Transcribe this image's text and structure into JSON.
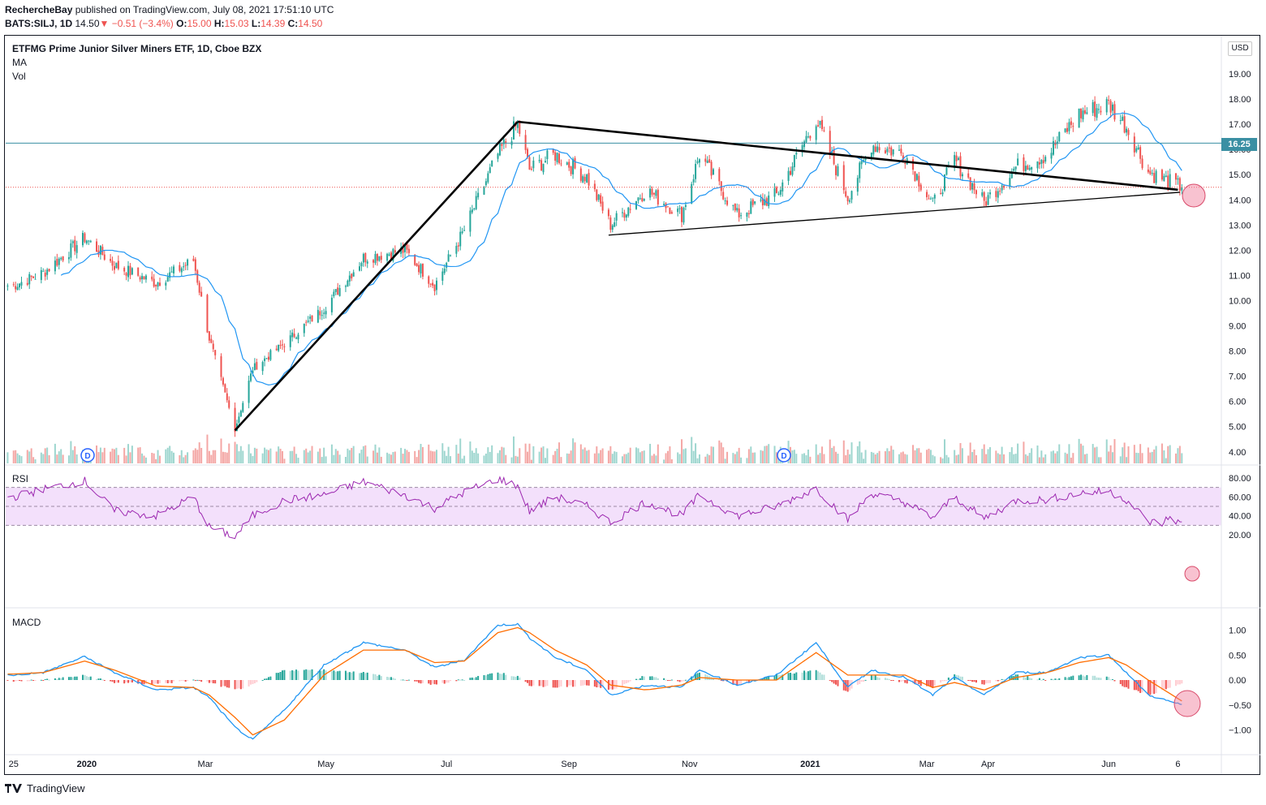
{
  "header": {
    "author": "RechercheBay",
    "published_text": "published on TradingView.com, July 08, 2021 17:51:10 UTC",
    "symbol": "BATS:SILJ, 1D",
    "last": "14.50",
    "arrow": "▼",
    "change": "−0.51 (−3.4%)",
    "o_label": "O:",
    "o_val": "15.00",
    "h_label": "H:",
    "h_val": "15.03",
    "l_label": "L:",
    "l_val": "14.39",
    "c_label": "C:",
    "c_val": "14.50"
  },
  "panes": {
    "main_title": "ETFMG Prime Junior Silver Miners ETF, 1D, Cboe BZX",
    "ma_label": "MA",
    "vol_label": "Vol",
    "rsi_label": "RSI",
    "macd_label": "MACD"
  },
  "currency": "USD",
  "price_tag": "16.25",
  "dividend_marker": "D",
  "footer": {
    "brand": "TradingView"
  },
  "colors": {
    "up": "#26a69a",
    "down": "#ef5350",
    "ma": "#2196f3",
    "rsi": "#9c27b0",
    "rsi_band": "#f3e0fb",
    "macd": "#2196f3",
    "signal": "#ff6d00",
    "hline": "#3a8fa3"
  },
  "chart_data": [
    {
      "type": "candlestick",
      "title": "ETFMG Prime Junior Silver Miners ETF, 1D, Cboe BZX",
      "x_ticks": [
        "25",
        "2020",
        "Mar",
        "May",
        "Jul",
        "Sep",
        "Nov",
        "2021",
        "Mar",
        "Apr",
        "Jun",
        "6"
      ],
      "y_ticks": [
        "19.00",
        "18.00",
        "17.00",
        "16.00",
        "15.00",
        "14.00",
        "13.00",
        "12.00",
        "11.00",
        "10.00",
        "9.00",
        "8.00",
        "7.00",
        "6.00",
        "5.00",
        "4.00"
      ],
      "ylim": [
        3.5,
        19.9
      ],
      "close_path": [
        {
          "date": "2019-11-25",
          "close": 10.6
        },
        {
          "date": "2019-12-10",
          "close": 11.1
        },
        {
          "date": "2019-12-31",
          "close": 12.5
        },
        {
          "date": "2020-01-15",
          "close": 11.4
        },
        {
          "date": "2020-02-05",
          "close": 10.7
        },
        {
          "date": "2020-02-24",
          "close": 11.6
        },
        {
          "date": "2020-03-03",
          "close": 8.5
        },
        {
          "date": "2020-03-16",
          "close": 4.9
        },
        {
          "date": "2020-03-25",
          "close": 7.3
        },
        {
          "date": "2020-04-10",
          "close": 8.3
        },
        {
          "date": "2020-04-30",
          "close": 9.7
        },
        {
          "date": "2020-05-20",
          "close": 11.7
        },
        {
          "date": "2020-06-10",
          "close": 12.0
        },
        {
          "date": "2020-06-25",
          "close": 10.6
        },
        {
          "date": "2020-07-10",
          "close": 12.8
        },
        {
          "date": "2020-07-27",
          "close": 15.8
        },
        {
          "date": "2020-08-06",
          "close": 17.0
        },
        {
          "date": "2020-08-12",
          "close": 15.2
        },
        {
          "date": "2020-08-25",
          "close": 15.8
        },
        {
          "date": "2020-09-10",
          "close": 14.9
        },
        {
          "date": "2020-09-22",
          "close": 13.0
        },
        {
          "date": "2020-10-10",
          "close": 14.4
        },
        {
          "date": "2020-10-28",
          "close": 13.4
        },
        {
          "date": "2020-11-06",
          "close": 15.8
        },
        {
          "date": "2020-11-25",
          "close": 13.4
        },
        {
          "date": "2020-12-15",
          "close": 14.2
        },
        {
          "date": "2021-01-04",
          "close": 17.2
        },
        {
          "date": "2021-01-20",
          "close": 14.1
        },
        {
          "date": "2021-02-01",
          "close": 16.2
        },
        {
          "date": "2021-02-18",
          "close": 15.8
        },
        {
          "date": "2021-03-04",
          "close": 13.8
        },
        {
          "date": "2021-03-15",
          "close": 15.6
        },
        {
          "date": "2021-03-30",
          "close": 13.9
        },
        {
          "date": "2021-04-15",
          "close": 15.3
        },
        {
          "date": "2021-05-01",
          "close": 15.8
        },
        {
          "date": "2021-05-17",
          "close": 17.4
        },
        {
          "date": "2021-06-01",
          "close": 17.8
        },
        {
          "date": "2021-06-10",
          "close": 16.9
        },
        {
          "date": "2021-06-21",
          "close": 15.1
        },
        {
          "date": "2021-07-08",
          "close": 14.5
        }
      ],
      "trendlines": [
        {
          "from": {
            "date": "2020-03-16",
            "price": 4.85
          },
          "to": {
            "date": "2020-08-06",
            "price": 17.1
          }
        },
        {
          "from": {
            "date": "2020-08-06",
            "price": 17.1
          },
          "to": {
            "date": "2021-07-06",
            "price": 14.4
          }
        },
        {
          "from": {
            "date": "2020-09-21",
            "price": 12.6
          },
          "to": {
            "date": "2021-07-07",
            "price": 14.3
          }
        }
      ],
      "horizontal_level": 16.25,
      "last_price_line": 14.5
    },
    {
      "type": "line",
      "title": "RSI",
      "y_ticks": [
        "80.00",
        "60.00",
        "40.00",
        "20.00"
      ],
      "ylim": [
        13,
        90
      ],
      "bands": {
        "upper": 70,
        "middle": 50,
        "lower": 30
      },
      "points": [
        {
          "date": "2019-11-25",
          "value": 60
        },
        {
          "date": "2019-12-10",
          "value": 68
        },
        {
          "date": "2019-12-31",
          "value": 77
        },
        {
          "date": "2020-01-15",
          "value": 45
        },
        {
          "date": "2020-02-05",
          "value": 40
        },
        {
          "date": "2020-02-24",
          "value": 60
        },
        {
          "date": "2020-03-03",
          "value": 28
        },
        {
          "date": "2020-03-16",
          "value": 18
        },
        {
          "date": "2020-03-25",
          "value": 40
        },
        {
          "date": "2020-04-10",
          "value": 56
        },
        {
          "date": "2020-04-30",
          "value": 62
        },
        {
          "date": "2020-05-20",
          "value": 76
        },
        {
          "date": "2020-06-10",
          "value": 62
        },
        {
          "date": "2020-06-25",
          "value": 48
        },
        {
          "date": "2020-07-10",
          "value": 65
        },
        {
          "date": "2020-07-27",
          "value": 79
        },
        {
          "date": "2020-08-06",
          "value": 72
        },
        {
          "date": "2020-08-12",
          "value": 45
        },
        {
          "date": "2020-08-25",
          "value": 60
        },
        {
          "date": "2020-09-10",
          "value": 50
        },
        {
          "date": "2020-09-22",
          "value": 33
        },
        {
          "date": "2020-10-10",
          "value": 55
        },
        {
          "date": "2020-10-28",
          "value": 40
        },
        {
          "date": "2020-11-06",
          "value": 62
        },
        {
          "date": "2020-11-25",
          "value": 40
        },
        {
          "date": "2020-12-15",
          "value": 50
        },
        {
          "date": "2021-01-04",
          "value": 69
        },
        {
          "date": "2021-01-20",
          "value": 36
        },
        {
          "date": "2021-02-01",
          "value": 64
        },
        {
          "date": "2021-02-18",
          "value": 54
        },
        {
          "date": "2021-03-04",
          "value": 38
        },
        {
          "date": "2021-03-15",
          "value": 60
        },
        {
          "date": "2021-03-30",
          "value": 37
        },
        {
          "date": "2021-04-15",
          "value": 56
        },
        {
          "date": "2021-05-01",
          "value": 57
        },
        {
          "date": "2021-05-17",
          "value": 64
        },
        {
          "date": "2021-06-01",
          "value": 66
        },
        {
          "date": "2021-06-10",
          "value": 57
        },
        {
          "date": "2021-06-21",
          "value": 34
        },
        {
          "date": "2021-06-28",
          "value": 32
        },
        {
          "date": "2021-07-02",
          "value": 39
        },
        {
          "date": "2021-07-08",
          "value": 31
        }
      ]
    },
    {
      "type": "line",
      "title": "MACD",
      "y_ticks": [
        "1.00",
        "0.50",
        "0.00",
        "−0.50",
        "−1.00"
      ],
      "ylim": [
        -1.35,
        1.35
      ],
      "series": [
        {
          "name": "MACD",
          "points": [
            {
              "date": "2019-11-25",
              "value": 0.1
            },
            {
              "date": "2019-12-10",
              "value": 0.15
            },
            {
              "date": "2019-12-31",
              "value": 0.47
            },
            {
              "date": "2020-01-15",
              "value": 0.15
            },
            {
              "date": "2020-02-05",
              "value": -0.2
            },
            {
              "date": "2020-02-24",
              "value": -0.15
            },
            {
              "date": "2020-03-03",
              "value": -0.35
            },
            {
              "date": "2020-03-16",
              "value": -0.95
            },
            {
              "date": "2020-03-25",
              "value": -1.2
            },
            {
              "date": "2020-04-10",
              "value": -0.6
            },
            {
              "date": "2020-04-30",
              "value": 0.3
            },
            {
              "date": "2020-05-20",
              "value": 0.75
            },
            {
              "date": "2020-06-10",
              "value": 0.6
            },
            {
              "date": "2020-06-25",
              "value": 0.25
            },
            {
              "date": "2020-07-10",
              "value": 0.4
            },
            {
              "date": "2020-07-27",
              "value": 1.1
            },
            {
              "date": "2020-08-06",
              "value": 1.12
            },
            {
              "date": "2020-08-12",
              "value": 0.85
            },
            {
              "date": "2020-08-25",
              "value": 0.45
            },
            {
              "date": "2020-09-10",
              "value": 0.2
            },
            {
              "date": "2020-09-22",
              "value": -0.3
            },
            {
              "date": "2020-10-10",
              "value": -0.1
            },
            {
              "date": "2020-10-28",
              "value": -0.15
            },
            {
              "date": "2020-11-06",
              "value": 0.2
            },
            {
              "date": "2020-11-25",
              "value": -0.1
            },
            {
              "date": "2020-12-15",
              "value": 0.1
            },
            {
              "date": "2021-01-04",
              "value": 0.75
            },
            {
              "date": "2021-01-20",
              "value": -0.15
            },
            {
              "date": "2021-02-01",
              "value": 0.2
            },
            {
              "date": "2021-02-18",
              "value": 0.05
            },
            {
              "date": "2021-03-04",
              "value": -0.3
            },
            {
              "date": "2021-03-15",
              "value": 0.05
            },
            {
              "date": "2021-03-30",
              "value": -0.3
            },
            {
              "date": "2021-04-15",
              "value": 0.15
            },
            {
              "date": "2021-05-01",
              "value": 0.15
            },
            {
              "date": "2021-05-17",
              "value": 0.45
            },
            {
              "date": "2021-06-01",
              "value": 0.5
            },
            {
              "date": "2021-06-10",
              "value": 0.15
            },
            {
              "date": "2021-06-21",
              "value": -0.3
            },
            {
              "date": "2021-07-08",
              "value": -0.5
            }
          ]
        },
        {
          "name": "Signal",
          "points": [
            {
              "date": "2019-11-25",
              "value": 0.12
            },
            {
              "date": "2019-12-10",
              "value": 0.15
            },
            {
              "date": "2019-12-31",
              "value": 0.38
            },
            {
              "date": "2020-01-15",
              "value": 0.2
            },
            {
              "date": "2020-02-05",
              "value": -0.12
            },
            {
              "date": "2020-02-24",
              "value": -0.15
            },
            {
              "date": "2020-03-03",
              "value": -0.3
            },
            {
              "date": "2020-03-16",
              "value": -0.75
            },
            {
              "date": "2020-03-25",
              "value": -1.1
            },
            {
              "date": "2020-04-10",
              "value": -0.8
            },
            {
              "date": "2020-04-30",
              "value": 0.1
            },
            {
              "date": "2020-05-20",
              "value": 0.6
            },
            {
              "date": "2020-06-10",
              "value": 0.6
            },
            {
              "date": "2020-06-25",
              "value": 0.35
            },
            {
              "date": "2020-07-10",
              "value": 0.38
            },
            {
              "date": "2020-07-27",
              "value": 0.95
            },
            {
              "date": "2020-08-06",
              "value": 1.05
            },
            {
              "date": "2020-08-12",
              "value": 0.95
            },
            {
              "date": "2020-08-25",
              "value": 0.6
            },
            {
              "date": "2020-09-10",
              "value": 0.3
            },
            {
              "date": "2020-09-22",
              "value": -0.1
            },
            {
              "date": "2020-10-10",
              "value": -0.2
            },
            {
              "date": "2020-10-28",
              "value": -0.1
            },
            {
              "date": "2020-11-06",
              "value": 0.05
            },
            {
              "date": "2020-11-25",
              "value": 0.0
            },
            {
              "date": "2020-12-15",
              "value": 0.0
            },
            {
              "date": "2021-01-04",
              "value": 0.55
            },
            {
              "date": "2021-01-20",
              "value": 0.1
            },
            {
              "date": "2021-02-01",
              "value": 0.1
            },
            {
              "date": "2021-02-18",
              "value": 0.1
            },
            {
              "date": "2021-03-04",
              "value": -0.15
            },
            {
              "date": "2021-03-15",
              "value": -0.05
            },
            {
              "date": "2021-03-30",
              "value": -0.2
            },
            {
              "date": "2021-04-15",
              "value": 0.05
            },
            {
              "date": "2021-05-01",
              "value": 0.15
            },
            {
              "date": "2021-05-17",
              "value": 0.35
            },
            {
              "date": "2021-06-01",
              "value": 0.45
            },
            {
              "date": "2021-06-10",
              "value": 0.3
            },
            {
              "date": "2021-06-21",
              "value": 0.0
            },
            {
              "date": "2021-07-08",
              "value": -0.42
            }
          ]
        }
      ]
    }
  ]
}
